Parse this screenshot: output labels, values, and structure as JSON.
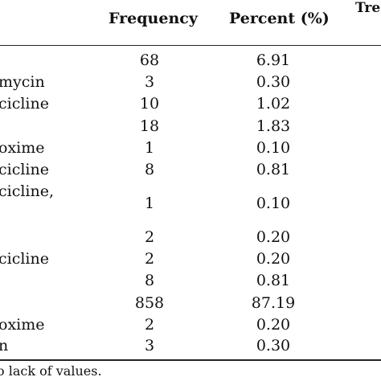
{
  "table": {
    "headers": {
      "frequency": "Frequency",
      "percent": "Percent (%)",
      "treatment_partial": "Tre"
    },
    "rows": [
      {
        "label": "",
        "frequency": "68",
        "percent": "6.91"
      },
      {
        "label": "mycin",
        "frequency": "3",
        "percent": "0.30"
      },
      {
        "label": "cicline",
        "frequency": "10",
        "percent": "1.02"
      },
      {
        "label": "",
        "frequency": "18",
        "percent": "1.83"
      },
      {
        "label": "oxime",
        "frequency": "1",
        "percent": "0.10"
      },
      {
        "label": "cicline",
        "frequency": "8",
        "percent": "0.81"
      },
      {
        "label": "cicline,",
        "frequency": "1",
        "percent": "0.10"
      },
      {
        "label": "",
        "frequency": "2",
        "percent": "0.20"
      },
      {
        "label": "cicline",
        "frequency": "2",
        "percent": "0.20"
      },
      {
        "label": "",
        "frequency": "8",
        "percent": "0.81"
      },
      {
        "label": "",
        "frequency": "858",
        "percent": "87.19"
      },
      {
        "label": "oxime",
        "frequency": "2",
        "percent": "0.20"
      },
      {
        "label": "n",
        "frequency": "3",
        "percent": "0.30"
      }
    ],
    "footnote": "o lack of values."
  }
}
